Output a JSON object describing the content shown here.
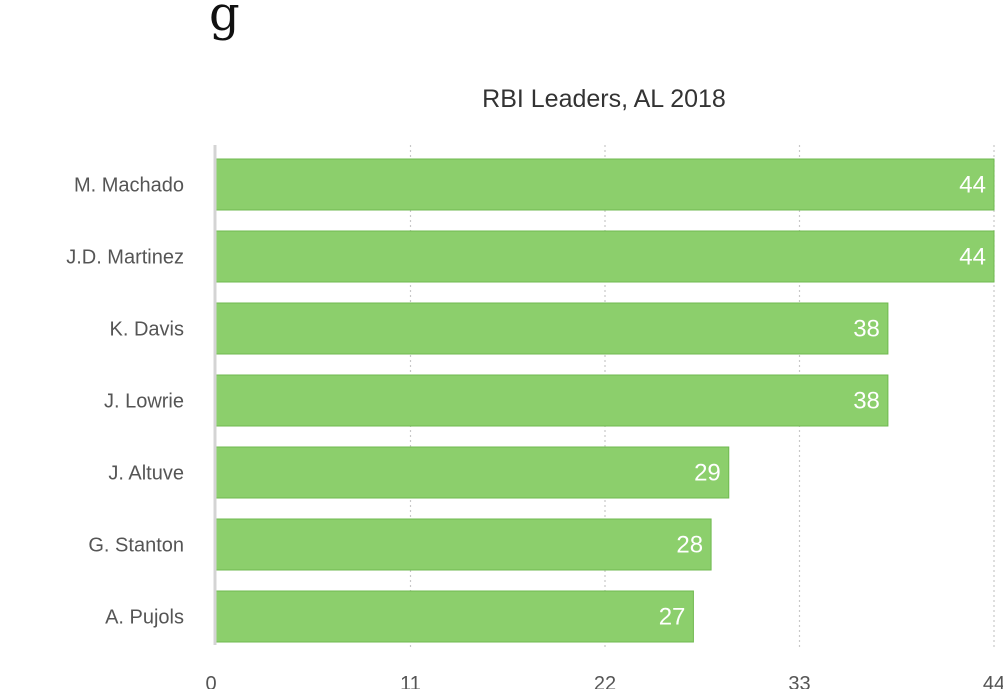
{
  "chart_data": {
    "type": "bar",
    "orientation": "horizontal",
    "title": "RBI Leaders, AL 2018",
    "categories": [
      "M. Machado",
      "J.D. Martinez",
      "K. Davis",
      "J. Lowrie",
      "J. Altuve",
      "G. Stanton",
      "A. Pujols"
    ],
    "values": [
      44,
      44,
      38,
      38,
      29,
      28,
      27
    ],
    "data_labels": [
      "44",
      "44",
      "38",
      "38",
      "29",
      "28",
      "27"
    ],
    "xlim": [
      0,
      44
    ],
    "x_ticks": [
      "0",
      "11",
      "22",
      "33",
      "44"
    ],
    "grid": true,
    "legend": "none",
    "bar_color": "#8ccf6c",
    "bar_border_color": "#6fb94f"
  },
  "header_fragment": "g"
}
